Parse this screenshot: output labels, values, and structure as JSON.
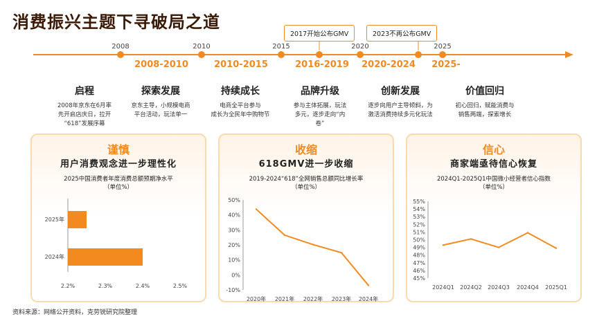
{
  "title": "消费振兴主题下寻破局之道",
  "timeline": {
    "years": [
      "2008",
      "2010",
      "2015",
      "2020",
      "2025"
    ],
    "callouts": [
      "2017开始公布GMV",
      "2023不再公布GMV"
    ],
    "periods": [
      "2008-2010",
      "2010-2015",
      "2016-2019",
      "2020-2024",
      "2025-"
    ],
    "phases": [
      {
        "title": "启程",
        "lines": [
          "2008年京东在6月率",
          "先开启店庆日，拉开",
          "“618”发展序幕"
        ]
      },
      {
        "title": "探索发展",
        "lines": [
          "京东主导，小规模电商",
          "平台活动，玩法单一"
        ]
      },
      {
        "title": "持续成长",
        "lines": [
          "电商全平台参与",
          "成长为全民年中购物节"
        ]
      },
      {
        "title": "品牌升级",
        "lines": [
          "参与主体拓展，玩法",
          "多元，逐步走向“内",
          "卷”"
        ]
      },
      {
        "title": "创新发展",
        "lines": [
          "逐步向用户主导倾斜，为",
          "激活消费持续多元化玩法"
        ]
      },
      {
        "title": "价值回归",
        "lines": [
          "初心回归，赋能消费与",
          "销售两端，探索增长"
        ]
      }
    ]
  },
  "cards": [
    {
      "heading": "谨慎",
      "subheading": "用户消费观念进一步理性化",
      "chart_title": "2025中国消费者年度消费总额预期净水平",
      "unit": "（单位%）"
    },
    {
      "heading": "收缩",
      "subheading": "618GMV进一步收缩",
      "chart_title": "2019-2024“618”全网销售总额同比增长率",
      "unit": "（单位%）"
    },
    {
      "heading": "信心",
      "subheading": "商家端亟待信心恢复",
      "chart_title": "2024Q1-2025Q1中国微小经营者信心指数",
      "unit": "（单位%）"
    }
  ],
  "chart_data": [
    {
      "type": "bar",
      "orientation": "horizontal",
      "title": "2025中国消费者年度消费总额预期净水平",
      "unit": "（单位%）",
      "categories": [
        "2025年",
        "2024年"
      ],
      "values": [
        2.25,
        2.4
      ],
      "xlim": [
        2.2,
        2.5
      ],
      "xticks": [
        "2.2%",
        "2.3%",
        "2.4%",
        "2.5%"
      ],
      "color": "#f28a20"
    },
    {
      "type": "line",
      "title": "2019-2024“618”全网销售总额同比增长率",
      "unit": "（单位%）",
      "categories": [
        "2020年",
        "2021年",
        "2022年",
        "2023年",
        "2024年"
      ],
      "values": [
        43.8,
        26.5,
        20.2,
        14.8,
        -7.0
      ],
      "ylim": [
        -10,
        50
      ],
      "yticks": [
        "50%",
        "40%",
        "30%",
        "20%",
        "10%",
        "0%",
        "-10%"
      ],
      "color": "#f28a20"
    },
    {
      "type": "line",
      "title": "2024Q1-2025Q1中国微小经营者信心指数",
      "unit": "（单位%）",
      "categories": [
        "2024Q1",
        "2024Q2",
        "2024Q3",
        "2024Q4",
        "2025Q1"
      ],
      "values": [
        49.3,
        50.1,
        49.0,
        50.9,
        48.9
      ],
      "ylim": [
        45,
        55
      ],
      "yticks": [
        "55%",
        "54%",
        "53%",
        "52%",
        "51%",
        "50%",
        "49%",
        "48%",
        "47%",
        "46%",
        "45%"
      ],
      "color": "#f28a20"
    }
  ],
  "source": "资料来源：网络公开资料，克劳锐研究院整理"
}
